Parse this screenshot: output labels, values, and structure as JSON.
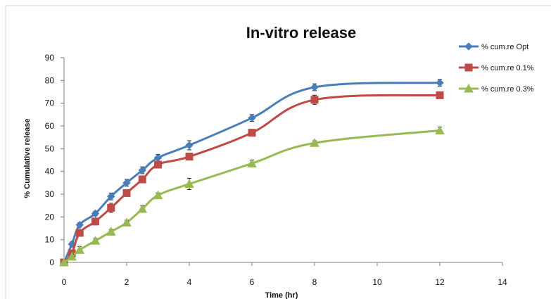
{
  "chart_data": {
    "type": "line",
    "title": "In-vitro release",
    "xlabel": "Time (hr)",
    "ylabel": "% Cumulative release",
    "xlim": [
      0,
      14
    ],
    "ylim": [
      0,
      90
    ],
    "xticks": [
      "0",
      "2",
      "4",
      "6",
      "8",
      "10",
      "12",
      "14"
    ],
    "yticks": [
      "0",
      "10",
      "20",
      "30",
      "40",
      "50",
      "60",
      "70",
      "80",
      "90"
    ],
    "grid": false,
    "legend_position": "top-right",
    "x": [
      0,
      0.25,
      0.5,
      1,
      1.5,
      2,
      2.5,
      3,
      4,
      6,
      8,
      12
    ],
    "series": [
      {
        "name": "% cum.re Opt",
        "color": "#4a7ebb",
        "marker": "diamond",
        "values": [
          0,
          8,
          16.5,
          21.5,
          29,
          35,
          40.5,
          46,
          51.5,
          63.5,
          77,
          79
        ],
        "errors": [
          0,
          1,
          1,
          1,
          1.5,
          1.5,
          1.5,
          1.5,
          2,
          1.5,
          1.5,
          1.5
        ]
      },
      {
        "name": "% cum.re 0.1%",
        "color": "#be4b48",
        "marker": "square",
        "values": [
          0,
          4,
          13,
          18,
          24,
          30.5,
          36.5,
          43,
          46.5,
          57,
          71.5,
          73.5
        ],
        "errors": [
          0,
          1,
          1.5,
          1.5,
          2,
          1.5,
          1.5,
          1.5,
          1.5,
          1.5,
          2,
          1
        ]
      },
      {
        "name": "% cum.re 0.3%",
        "color": "#98b954",
        "marker": "triangle",
        "values": [
          0,
          2.5,
          5.5,
          9.5,
          13.5,
          17.5,
          23.5,
          29.5,
          34.5,
          43.5,
          52.5,
          58
        ],
        "errors": [
          0,
          1,
          1.5,
          1,
          1,
          1,
          1.5,
          1,
          2.5,
          1.5,
          1,
          1.5
        ]
      }
    ]
  }
}
